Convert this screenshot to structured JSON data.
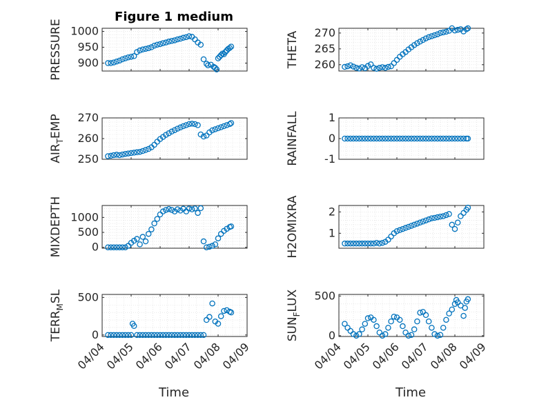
{
  "figure_title": "Figure 1 medium",
  "marker_color": "#0072BD",
  "x_tick_labels": [
    "04/04",
    "04/05",
    "04/06",
    "04/07",
    "04/08",
    "04/09"
  ],
  "chart_data": [
    {
      "type": "scatter",
      "ylabel": "PRESSURE",
      "ylim": [
        875,
        1010
      ],
      "yticks": [
        900,
        950,
        1000
      ],
      "ytick_labels": [
        "900",
        "950",
        "1000"
      ],
      "x": [
        0.2,
        0.3,
        0.4,
        0.5,
        0.6,
        0.7,
        0.8,
        0.9,
        1.0,
        1.1,
        1.2,
        1.3,
        1.4,
        1.5,
        1.6,
        1.7,
        1.8,
        1.9,
        2.0,
        2.1,
        2.2,
        2.3,
        2.4,
        2.5,
        2.6,
        2.7,
        2.8,
        2.9,
        3.0,
        3.1,
        3.2,
        3.3,
        3.4,
        3.5,
        3.6,
        3.65,
        3.75,
        3.85,
        3.9,
        3.95,
        4.0,
        4.05,
        4.1,
        4.15,
        4.2,
        4.25,
        4.3,
        4.35,
        4.4,
        4.45
      ],
      "values": [
        900,
        900,
        902,
        905,
        908,
        912,
        915,
        918,
        920,
        922,
        935,
        940,
        943,
        945,
        947,
        950,
        955,
        958,
        960,
        963,
        965,
        968,
        970,
        972,
        975,
        977,
        980,
        982,
        985,
        983,
        975,
        965,
        958,
        912,
        898,
        893,
        895,
        888,
        885,
        880,
        915,
        920,
        925,
        930,
        928,
        935,
        940,
        945,
        948,
        952
      ]
    },
    {
      "type": "scatter",
      "ylabel": "THETA",
      "ylim": [
        258,
        271.5
      ],
      "yticks": [
        260,
        265,
        270
      ],
      "ytick_labels": [
        "260",
        "265",
        "270"
      ],
      "x": [
        0.2,
        0.3,
        0.4,
        0.5,
        0.6,
        0.7,
        0.8,
        0.9,
        1.0,
        1.1,
        1.2,
        1.3,
        1.4,
        1.5,
        1.6,
        1.7,
        1.8,
        1.9,
        2.0,
        2.1,
        2.2,
        2.3,
        2.4,
        2.5,
        2.6,
        2.7,
        2.8,
        2.9,
        3.0,
        3.1,
        3.2,
        3.3,
        3.4,
        3.5,
        3.6,
        3.7,
        3.8,
        3.9,
        4.0,
        4.1,
        4.2,
        4.3,
        4.4,
        4.45
      ],
      "values": [
        259.3,
        259.5,
        259.8,
        259.4,
        259.0,
        258.8,
        259.2,
        258.9,
        259.6,
        260.1,
        259.0,
        258.7,
        259.0,
        259.2,
        259.0,
        259.3,
        259.5,
        260.5,
        261.5,
        262.5,
        263.3,
        264.0,
        264.8,
        265.5,
        266.2,
        266.8,
        267.3,
        267.8,
        268.3,
        268.7,
        269.0,
        269.3,
        269.6,
        270.0,
        270.2,
        270.4,
        270.7,
        271.5,
        270.8,
        271.0,
        271.2,
        270.5,
        271.2,
        271.5
      ]
    },
    {
      "type": "scatter",
      "ylabel": "AIR_TEMP",
      "ylim": [
        250,
        270
      ],
      "yticks": [
        250,
        260,
        270
      ],
      "ytick_labels": [
        "250",
        "260",
        "270"
      ],
      "x": [
        0.2,
        0.3,
        0.4,
        0.5,
        0.6,
        0.7,
        0.8,
        0.9,
        1.0,
        1.1,
        1.2,
        1.3,
        1.4,
        1.5,
        1.6,
        1.7,
        1.8,
        1.9,
        2.0,
        2.1,
        2.2,
        2.3,
        2.4,
        2.5,
        2.6,
        2.7,
        2.8,
        2.9,
        3.0,
        3.1,
        3.2,
        3.3,
        3.4,
        3.5,
        3.6,
        3.7,
        3.8,
        3.9,
        4.0,
        4.1,
        4.2,
        4.3,
        4.4,
        4.45
      ],
      "values": [
        251.5,
        251.7,
        252.0,
        252.2,
        252.0,
        252.3,
        252.6,
        252.8,
        253.0,
        253.2,
        253.4,
        253.6,
        254.0,
        254.5,
        255.0,
        255.8,
        257.0,
        258.5,
        259.8,
        260.8,
        261.8,
        262.6,
        263.4,
        264.1,
        264.8,
        265.4,
        266.0,
        266.5,
        267.0,
        267.2,
        267.0,
        266.5,
        262.0,
        261.0,
        261.5,
        263.0,
        264.0,
        264.5,
        265.0,
        265.5,
        266.0,
        266.5,
        267.0,
        267.5
      ]
    },
    {
      "type": "scatter",
      "ylabel": "RAINFALL",
      "ylim": [
        -1,
        1
      ],
      "yticks": [
        -1,
        0,
        1
      ],
      "ytick_labels": [
        "-1",
        "0",
        "1"
      ],
      "x": [
        0.2,
        0.3,
        0.4,
        0.5,
        0.6,
        0.7,
        0.8,
        0.9,
        1.0,
        1.1,
        1.2,
        1.3,
        1.4,
        1.5,
        1.6,
        1.7,
        1.8,
        1.9,
        2.0,
        2.1,
        2.2,
        2.3,
        2.4,
        2.5,
        2.6,
        2.7,
        2.8,
        2.9,
        3.0,
        3.1,
        3.2,
        3.3,
        3.4,
        3.5,
        3.6,
        3.7,
        3.8,
        3.9,
        4.0,
        4.1,
        4.2,
        4.3,
        4.4,
        4.45
      ],
      "values": [
        0,
        0,
        0,
        0,
        0,
        0,
        0,
        0,
        0,
        0,
        0,
        0,
        0,
        0,
        0,
        0,
        0,
        0,
        0,
        0,
        0,
        0,
        0,
        0,
        0,
        0,
        0,
        0,
        0,
        0,
        0,
        0,
        0,
        0,
        0,
        0,
        0,
        0,
        0,
        0,
        0,
        0,
        0,
        0
      ]
    },
    {
      "type": "scatter",
      "ylabel": "MIXDEPTH",
      "ylim": [
        -30,
        1400
      ],
      "yticks": [
        0,
        500,
        1000
      ],
      "ytick_labels": [
        "0",
        "500",
        "1000"
      ],
      "x": [
        0.2,
        0.3,
        0.4,
        0.5,
        0.6,
        0.7,
        0.8,
        0.9,
        1.0,
        1.1,
        1.2,
        1.3,
        1.4,
        1.5,
        1.6,
        1.7,
        1.8,
        1.9,
        2.0,
        2.1,
        2.2,
        2.3,
        2.4,
        2.5,
        2.6,
        2.7,
        2.8,
        2.9,
        3.0,
        3.1,
        3.2,
        3.3,
        3.4,
        3.5,
        3.6,
        3.7,
        3.8,
        3.9,
        4.0,
        4.1,
        4.2,
        4.3,
        4.4,
        4.45
      ],
      "values": [
        0,
        0,
        0,
        0,
        0,
        0,
        0,
        50,
        150,
        220,
        280,
        100,
        350,
        200,
        450,
        600,
        800,
        950,
        1100,
        1200,
        1250,
        1280,
        1250,
        1200,
        1270,
        1230,
        1290,
        1200,
        1300,
        1270,
        1300,
        1150,
        1310,
        200,
        0,
        20,
        50,
        100,
        300,
        450,
        550,
        620,
        680,
        700
      ]
    },
    {
      "type": "scatter",
      "ylabel": "H2OMIXRA",
      "ylim": [
        0.3,
        2.3
      ],
      "yticks": [
        1,
        2
      ],
      "ytick_labels": [
        "1",
        "2"
      ],
      "x": [
        0.2,
        0.3,
        0.4,
        0.5,
        0.6,
        0.7,
        0.8,
        0.9,
        1.0,
        1.1,
        1.2,
        1.3,
        1.4,
        1.5,
        1.6,
        1.7,
        1.8,
        1.9,
        2.0,
        2.1,
        2.2,
        2.3,
        2.4,
        2.5,
        2.6,
        2.7,
        2.8,
        2.9,
        3.0,
        3.1,
        3.2,
        3.3,
        3.4,
        3.5,
        3.6,
        3.7,
        3.8,
        3.9,
        4.0,
        4.1,
        4.2,
        4.3,
        4.4,
        4.45
      ],
      "values": [
        0.52,
        0.52,
        0.52,
        0.52,
        0.52,
        0.52,
        0.52,
        0.52,
        0.52,
        0.52,
        0.52,
        0.55,
        0.52,
        0.55,
        0.6,
        0.7,
        0.85,
        1.0,
        1.1,
        1.15,
        1.2,
        1.25,
        1.3,
        1.35,
        1.4,
        1.45,
        1.5,
        1.55,
        1.6,
        1.65,
        1.7,
        1.72,
        1.75,
        1.78,
        1.8,
        1.85,
        1.9,
        1.4,
        1.2,
        1.5,
        1.8,
        1.95,
        2.1,
        2.2
      ]
    },
    {
      "type": "scatter",
      "ylabel": "TERR_MSL",
      "ylim": [
        -20,
        540
      ],
      "yticks": [
        0,
        500
      ],
      "ytick_labels": [
        "0",
        "500"
      ],
      "x": [
        0.2,
        0.3,
        0.4,
        0.5,
        0.6,
        0.7,
        0.8,
        0.9,
        1.0,
        1.05,
        1.1,
        1.2,
        1.3,
        1.4,
        1.5,
        1.6,
        1.7,
        1.8,
        1.9,
        2.0,
        2.1,
        2.2,
        2.3,
        2.4,
        2.5,
        2.6,
        2.7,
        2.8,
        2.9,
        3.0,
        3.1,
        3.2,
        3.3,
        3.4,
        3.5,
        3.6,
        3.7,
        3.8,
        3.9,
        4.0,
        4.1,
        4.2,
        4.3,
        4.4,
        4.45
      ],
      "values": [
        0,
        0,
        0,
        0,
        0,
        0,
        0,
        0,
        0,
        150,
        120,
        0,
        0,
        0,
        0,
        0,
        0,
        0,
        0,
        0,
        0,
        0,
        0,
        0,
        0,
        0,
        0,
        0,
        0,
        0,
        0,
        0,
        0,
        0,
        0,
        200,
        240,
        420,
        180,
        150,
        250,
        320,
        330,
        310,
        300
      ]
    },
    {
      "type": "scatter",
      "ylabel": "SUN_FLUX",
      "ylim": [
        -10,
        520
      ],
      "yticks": [
        0,
        500
      ],
      "ytick_labels": [
        "0",
        "500"
      ],
      "x": [
        0.2,
        0.3,
        0.4,
        0.5,
        0.6,
        0.7,
        0.8,
        0.9,
        1.0,
        1.1,
        1.2,
        1.3,
        1.4,
        1.5,
        1.6,
        1.7,
        1.8,
        1.9,
        2.0,
        2.1,
        2.2,
        2.3,
        2.4,
        2.5,
        2.6,
        2.7,
        2.8,
        2.9,
        3.0,
        3.1,
        3.2,
        3.3,
        3.4,
        3.5,
        3.6,
        3.7,
        3.8,
        3.9,
        4.0,
        4.05,
        4.1,
        4.2,
        4.3,
        4.35,
        4.4,
        4.45
      ],
      "values": [
        150,
        100,
        60,
        20,
        0,
        20,
        80,
        150,
        220,
        230,
        200,
        120,
        40,
        0,
        20,
        100,
        180,
        240,
        230,
        200,
        120,
        40,
        0,
        10,
        80,
        180,
        290,
        300,
        260,
        180,
        100,
        20,
        0,
        10,
        100,
        200,
        280,
        330,
        400,
        450,
        420,
        380,
        250,
        350,
        430,
        460
      ]
    }
  ],
  "xlabel": "Time"
}
